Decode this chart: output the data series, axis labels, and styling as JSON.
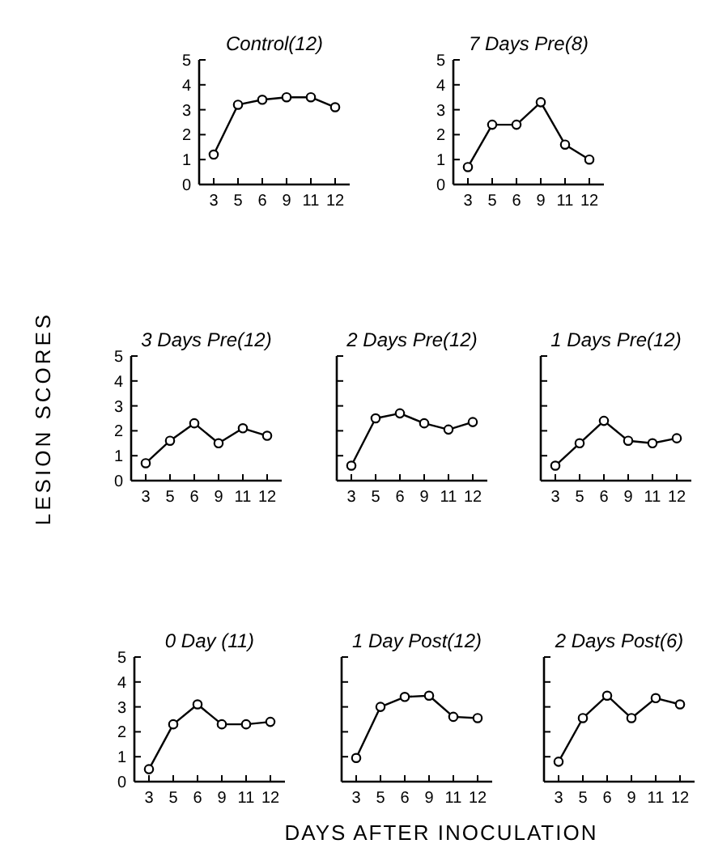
{
  "chart_data": [
    {
      "type": "line",
      "title": "Control(12)",
      "categories": [
        "3",
        "5",
        "6",
        "9",
        "11",
        "12"
      ],
      "values": [
        1.2,
        3.2,
        3.4,
        3.5,
        3.5,
        3.1
      ],
      "ylim": [
        0,
        5
      ],
      "yticks": [
        0,
        1,
        2,
        3,
        4,
        5
      ],
      "marker": "circle",
      "color": "#000000"
    },
    {
      "type": "line",
      "title": "7 Days Pre(8)",
      "categories": [
        "3",
        "5",
        "6",
        "9",
        "11",
        "12"
      ],
      "values": [
        0.7,
        2.4,
        2.4,
        3.3,
        1.6,
        1.0
      ],
      "ylim": [
        0,
        5
      ],
      "yticks": [
        0,
        1,
        2,
        3,
        4,
        5
      ],
      "marker": "circle",
      "color": "#000000"
    },
    {
      "type": "line",
      "title": "3 Days Pre(12)",
      "ylabel": "LESION SCORES",
      "categories": [
        "3",
        "5",
        "6",
        "9",
        "11",
        "12"
      ],
      "values": [
        0.7,
        1.6,
        2.3,
        1.5,
        2.1,
        1.8
      ],
      "ylim": [
        0,
        5
      ],
      "yticks": [
        0,
        1,
        2,
        3,
        4,
        5
      ],
      "marker": "circle",
      "color": "#000000"
    },
    {
      "type": "line",
      "title": "2 Days Pre(12)",
      "categories": [
        "3",
        "5",
        "6",
        "9",
        "11",
        "12"
      ],
      "values": [
        0.6,
        2.5,
        2.7,
        2.3,
        2.05,
        2.35
      ],
      "ylim": [
        0,
        5
      ],
      "yticks": [
        0,
        1,
        2,
        3,
        4,
        5
      ],
      "marker": "circle",
      "color": "#000000",
      "tick_labels": "x"
    },
    {
      "type": "line",
      "title": "1 Days Pre(12)",
      "categories": [
        "3",
        "5",
        "6",
        "9",
        "11",
        "12"
      ],
      "values": [
        0.6,
        1.5,
        2.4,
        1.6,
        1.5,
        1.7
      ],
      "ylim": [
        0,
        5
      ],
      "yticks": [
        0,
        1,
        2,
        3,
        4,
        5
      ],
      "marker": "circle",
      "color": "#000000",
      "tick_labels": "x"
    },
    {
      "type": "line",
      "title": "0 Day (11)",
      "categories": [
        "3",
        "5",
        "6",
        "9",
        "11",
        "12"
      ],
      "values": [
        0.5,
        2.3,
        3.1,
        2.3,
        2.3,
        2.4
      ],
      "ylim": [
        0,
        5
      ],
      "yticks": [
        0,
        1,
        2,
        3,
        4,
        5
      ],
      "marker": "circle",
      "color": "#000000"
    },
    {
      "type": "line",
      "title": "1 Day Post(12)",
      "xlabel": "DAYS AFTER INOCULATION",
      "categories": [
        "3",
        "5",
        "6",
        "9",
        "11",
        "12"
      ],
      "values": [
        0.95,
        3.0,
        3.4,
        3.45,
        2.6,
        2.55
      ],
      "ylim": [
        0,
        5
      ],
      "yticks": [
        0,
        1,
        2,
        3,
        4,
        5
      ],
      "marker": "circle",
      "color": "#000000",
      "tick_labels": "x"
    },
    {
      "type": "line",
      "title": "2 Days Post(6)",
      "categories": [
        "3",
        "5",
        "6",
        "9",
        "11",
        "12"
      ],
      "values": [
        0.8,
        2.55,
        3.45,
        2.55,
        3.35,
        3.1
      ],
      "ylim": [
        0,
        5
      ],
      "yticks": [
        0,
        1,
        2,
        3,
        4,
        5
      ],
      "marker": "circle",
      "color": "#000000",
      "tick_labels": "x"
    }
  ]
}
